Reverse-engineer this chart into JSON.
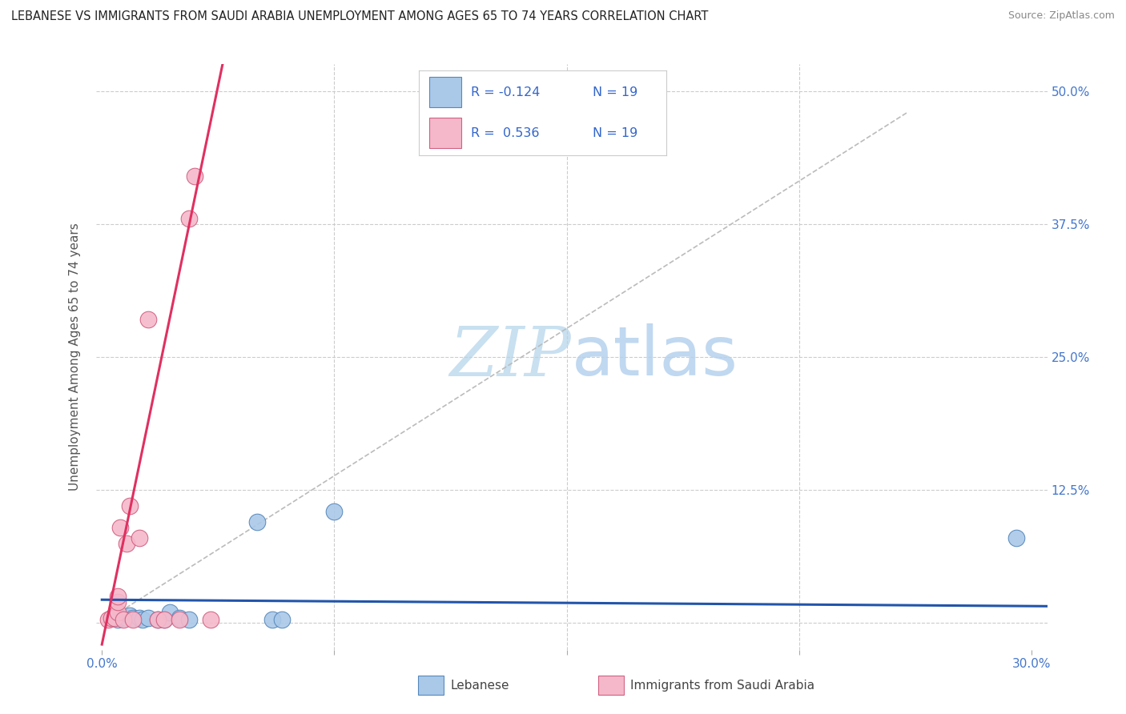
{
  "title": "LEBANESE VS IMMIGRANTS FROM SAUDI ARABIA UNEMPLOYMENT AMONG AGES 65 TO 74 YEARS CORRELATION CHART",
  "source": "Source: ZipAtlas.com",
  "ylabel": "Unemployment Among Ages 65 to 74 years",
  "xlim": [
    -0.002,
    0.305
  ],
  "ylim": [
    -0.025,
    0.525
  ],
  "xticks": [
    0.0,
    0.075,
    0.15,
    0.225,
    0.3
  ],
  "xticklabels": [
    "0.0%",
    "",
    "",
    "",
    "30.0%"
  ],
  "yticks": [
    0.0,
    0.125,
    0.25,
    0.375,
    0.5
  ],
  "yticklabels_right": [
    "",
    "12.5%",
    "25.0%",
    "37.5%",
    "50.0%"
  ],
  "legend_entries": [
    {
      "label": "Lebanese",
      "color": "#aac8e8",
      "edge_color": "#5588bb",
      "R": "-0.124",
      "N": "19"
    },
    {
      "label": "Immigrants from Saudi Arabia",
      "color": "#f5b8cb",
      "edge_color": "#d06080",
      "R": "0.536",
      "N": "19"
    }
  ],
  "blue_scatter_x": [
    0.003,
    0.005,
    0.007,
    0.008,
    0.009,
    0.01,
    0.012,
    0.013,
    0.015,
    0.018,
    0.02,
    0.022,
    0.025,
    0.028,
    0.05,
    0.055,
    0.058,
    0.075,
    0.295
  ],
  "blue_scatter_y": [
    0.005,
    0.003,
    0.005,
    0.005,
    0.007,
    0.005,
    0.005,
    0.003,
    0.005,
    0.003,
    0.003,
    0.01,
    0.005,
    0.003,
    0.095,
    0.003,
    0.003,
    0.105,
    0.08
  ],
  "pink_scatter_x": [
    0.002,
    0.003,
    0.004,
    0.005,
    0.005,
    0.005,
    0.006,
    0.007,
    0.008,
    0.009,
    0.01,
    0.012,
    0.015,
    0.018,
    0.02,
    0.025,
    0.028,
    0.03,
    0.035
  ],
  "pink_scatter_y": [
    0.003,
    0.005,
    0.005,
    0.01,
    0.02,
    0.025,
    0.09,
    0.003,
    0.075,
    0.11,
    0.003,
    0.08,
    0.285,
    0.003,
    0.003,
    0.003,
    0.38,
    0.42,
    0.003
  ],
  "blue_line_x": [
    0.0,
    0.305
  ],
  "blue_line_y_intercept": 0.022,
  "blue_line_slope": -0.02,
  "pink_line_x": [
    0.0,
    0.04
  ],
  "pink_line_y_intercept": -0.02,
  "pink_line_slope": 14.0,
  "gray_line_x": [
    0.0,
    0.26
  ],
  "gray_line_y": [
    0.0,
    0.48
  ],
  "blue_line_color": "#2255aa",
  "pink_line_color": "#e03060",
  "gray_line_color": "#bbbbbb",
  "tick_label_color": "#4477cc",
  "watermark_zip_color": "#c8e0f0",
  "watermark_atlas_color": "#c0d8f0",
  "background_color": "#ffffff",
  "grid_color": "#cccccc",
  "grid_linestyle": "--",
  "ylabel_color": "#555555",
  "title_color": "#222222",
  "source_color": "#888888",
  "legend_text_color": "#3366cc",
  "bottom_label_color": "#444444"
}
